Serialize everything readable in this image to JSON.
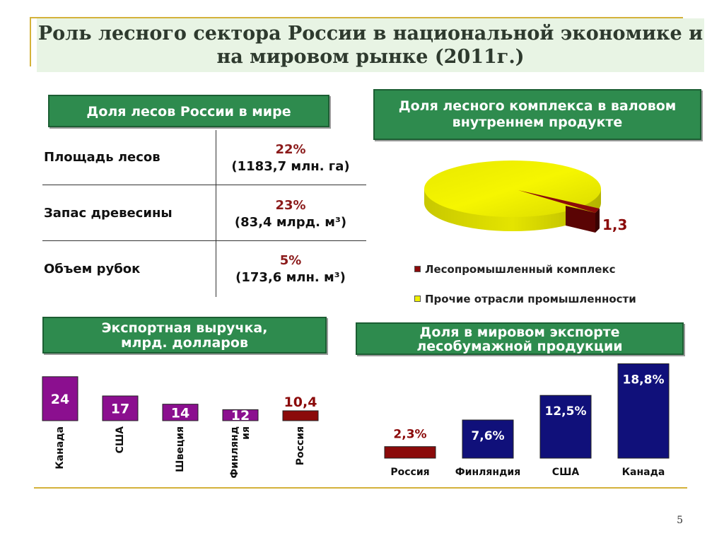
{
  "title_line1": "Роль лесного сектора России в национальной экономике и",
  "title_line2": "на мировом рынке (2011г.)",
  "forest_share": {
    "header": "Доля лесов России в мире",
    "rows": [
      {
        "label": "Площадь лесов",
        "pct": "22%",
        "value": "(1183,7 млн. га)"
      },
      {
        "label": "Запас древесины",
        "pct": "23%",
        "value": "(83,4 млрд. м³)"
      },
      {
        "label": "Объем рубок",
        "pct": "5%",
        "value": "(173,6 млн. м³)"
      }
    ]
  },
  "gdp_header_line1": "Доля лесного комплекса в валовом",
  "gdp_header_line2": "внутреннем продукте",
  "export_revenue_header_line1": "Экспортная выручка,",
  "export_revenue_header_line2": "млрд. долларов",
  "world_export_header_line1": "Доля в мировом экспорте",
  "world_export_header_line2": "лесобумажной продукции",
  "page_number": "5",
  "colors": {
    "green": "#2e8b4e",
    "purple": "#8b0f8f",
    "dark_red": "#8b0a0a",
    "navy": "#10107a",
    "yellow": "#f0f000"
  },
  "chart_data": [
    {
      "type": "pie",
      "categories": [
        "Лесопромышленный комплекс",
        "Прочие отрасли промышленности"
      ],
      "values": [
        1.3,
        98.7
      ],
      "labels": [
        "1,3",
        ""
      ],
      "legend": [
        "Лесопромышленный комплекс",
        "Прочие отрасли промышленности"
      ],
      "legend_placement": "bottom",
      "colors": [
        "#8b0a0a",
        "#f0f000"
      ]
    },
    {
      "type": "bar",
      "categories": [
        "Канада",
        "США",
        "Швеция",
        "Финлянд ия",
        "Россия"
      ],
      "values": [
        24,
        17,
        14,
        12,
        10.4
      ],
      "labels": [
        "24",
        "17",
        "14",
        "12",
        "10,4"
      ],
      "colors": [
        "#8b0f8f",
        "#8b0f8f",
        "#8b0f8f",
        "#8b0f8f",
        "#8b0a0a"
      ],
      "ylim": [
        0,
        26
      ]
    },
    {
      "type": "bar",
      "categories": [
        "Россия",
        "Финляндия",
        "США",
        "Канада"
      ],
      "values": [
        2.3,
        7.6,
        12.5,
        18.8
      ],
      "labels": [
        "2,3%",
        "7,6%",
        "12,5%",
        "18,8%"
      ],
      "colors": [
        "#8b0a0a",
        "#10107a",
        "#10107a",
        "#10107a"
      ],
      "ylim": [
        0,
        20
      ]
    }
  ]
}
